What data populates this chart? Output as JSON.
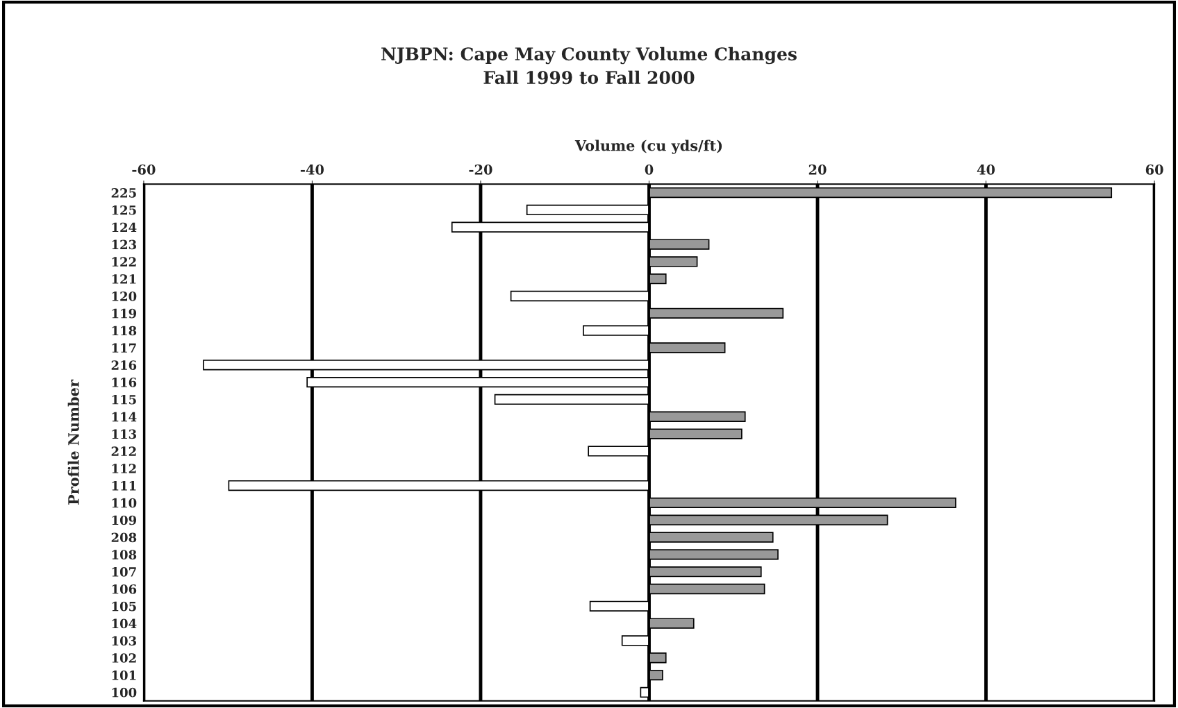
{
  "chart_data": {
    "type": "bar",
    "orientation": "horizontal",
    "title": "NJBPN: Cape May County Volume Changes\nFall 1999 to Fall 2000",
    "xlabel": "Volume (cu yds/ft)",
    "ylabel": "Profile Number",
    "categories": [
      "225",
      "125",
      "124",
      "123",
      "122",
      "121",
      "120",
      "119",
      "118",
      "117",
      "216",
      "116",
      "115",
      "114",
      "113",
      "212",
      "112",
      "111",
      "110",
      "109",
      "208",
      "108",
      "107",
      "106",
      "105",
      "104",
      "103",
      "102",
      "101",
      "100"
    ],
    "values": [
      54.9,
      -14.5,
      -23.4,
      7.1,
      5.7,
      2.0,
      -16.4,
      15.9,
      -7.8,
      9.0,
      -52.9,
      -40.6,
      -18.3,
      11.4,
      11.0,
      -7.2,
      null,
      -49.9,
      36.4,
      28.3,
      14.7,
      15.3,
      13.3,
      13.7,
      -7.0,
      5.3,
      -3.2,
      2.0,
      1.6,
      -1.0
    ],
    "colors": [
      "#999999",
      "#ffffff",
      "#ffffff",
      "#999999",
      "#999999",
      "#999999",
      "#ffffff",
      "#999999",
      "#ffffff",
      "#999999",
      "#ffffff",
      "#ffffff",
      "#ffffff",
      "#999999",
      "#999999",
      "#ffffff",
      "#ffffff",
      "#ffffff",
      "#999999",
      "#999999",
      "#999999",
      "#999999",
      "#999999",
      "#999999",
      "#ffffff",
      "#999999",
      "#ffffff",
      "#999999",
      "#999999",
      "#ffffff"
    ],
    "xlim": [
      -60,
      60
    ],
    "xticks": [
      -60,
      -40,
      -20,
      0,
      20,
      40,
      60
    ],
    "grid": "x",
    "legend": false
  }
}
